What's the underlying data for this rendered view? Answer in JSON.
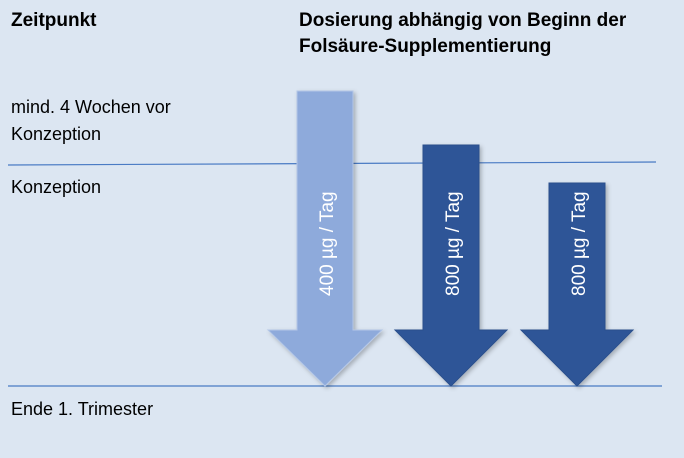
{
  "header": {
    "left": "Zeitpunkt",
    "right_line1": "Dosierung abhängig von Beginn der",
    "right_line2": "Folsäure-Supplementierung"
  },
  "timepoints": {
    "before_line1": "mind. 4 Wochen vor",
    "before_line2": "Konzeption",
    "conception": "Konzeption",
    "end": "Ende 1. Trimester"
  },
  "arrows": [
    {
      "label": "400 µg / Tag",
      "color": "#8eaadb"
    },
    {
      "label": "800 µg / Tag",
      "color": "#2e5597"
    },
    {
      "label": "800 µg / Tag",
      "color": "#2e5597"
    }
  ],
  "colors": {
    "background": "#dce6f2",
    "line": "#4a7bc4"
  }
}
